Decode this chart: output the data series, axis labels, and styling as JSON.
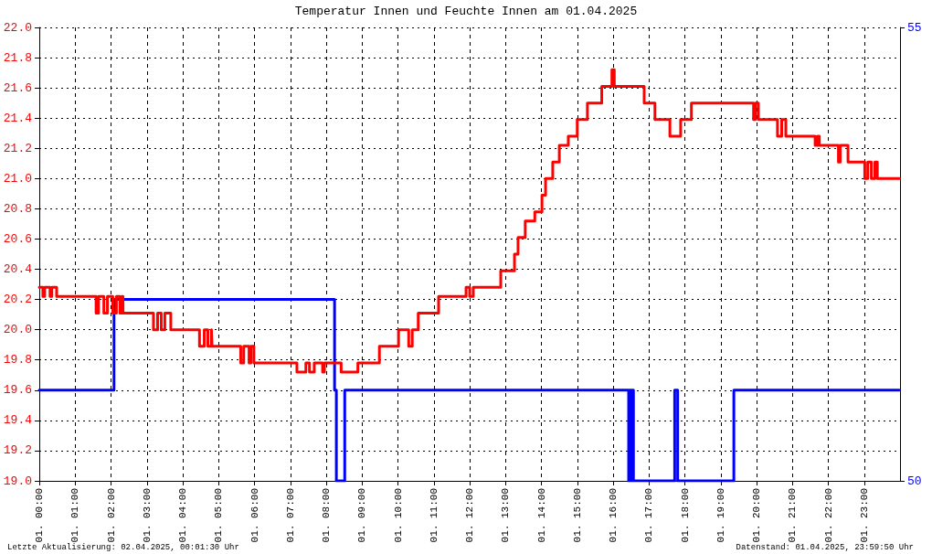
{
  "chart_data": {
    "type": "step",
    "title": "Temperatur Innen und Feuchte Innen am 01.04.2025",
    "annotations": [
      "Letzte Aktualisierung: 02.04.2025, 00:01:30 Uhr",
      "Datenstand: 01.04.2025, 23:59:50 Uhr"
    ],
    "xlim": [
      "2025-04-01T00:00",
      "2025-04-02T00:00"
    ],
    "xticks": [
      {
        "value": "2025-04-01T00:00",
        "label": "01. 00:00"
      },
      {
        "value": "2025-04-01T01:00",
        "label": "01. 01:00"
      },
      {
        "value": "2025-04-01T02:00",
        "label": "01. 02:00"
      },
      {
        "value": "2025-04-01T03:00",
        "label": "01. 03:00"
      },
      {
        "value": "2025-04-01T04:00",
        "label": "01. 04:00"
      },
      {
        "value": "2025-04-01T05:00",
        "label": "01. 05:00"
      },
      {
        "value": "2025-04-01T06:00",
        "label": "01. 06:00"
      },
      {
        "value": "2025-04-01T07:00",
        "label": "01. 07:00"
      },
      {
        "value": "2025-04-01T08:00",
        "label": "01. 08:00"
      },
      {
        "value": "2025-04-01T09:00",
        "label": "01. 09:00"
      },
      {
        "value": "2025-04-01T10:00",
        "label": "01. 10:00"
      },
      {
        "value": "2025-04-01T11:00",
        "label": "01. 11:00"
      },
      {
        "value": "2025-04-01T12:00",
        "label": "01. 12:00"
      },
      {
        "value": "2025-04-01T13:00",
        "label": "01. 13:00"
      },
      {
        "value": "2025-04-01T14:00",
        "label": "01. 14:00"
      },
      {
        "value": "2025-04-01T15:00",
        "label": "01. 15:00"
      },
      {
        "value": "2025-04-01T16:00",
        "label": "01. 16:00"
      },
      {
        "value": "2025-04-01T17:00",
        "label": "01. 17:00"
      },
      {
        "value": "2025-04-01T18:00",
        "label": "01. 18:00"
      },
      {
        "value": "2025-04-01T19:00",
        "label": "01. 19:00"
      },
      {
        "value": "2025-04-01T20:00",
        "label": "01. 20:00"
      },
      {
        "value": "2025-04-01T21:00",
        "label": "01. 21:00"
      },
      {
        "value": "2025-04-01T22:00",
        "label": "01. 22:00"
      },
      {
        "value": "2025-04-01T23:00",
        "label": "01. 23:00"
      }
    ],
    "ylim": [
      19,
      22
    ],
    "yticks": [
      {
        "value": 19,
        "label": "19.0"
      },
      19.2,
      19.4,
      19.6,
      19.8,
      {
        "value": 20,
        "label": "20.0"
      },
      20.2,
      20.4,
      20.6,
      20.8,
      {
        "value": 21,
        "label": "21.0"
      },
      21.2,
      21.4,
      21.6,
      21.8,
      {
        "value": 22,
        "label": "22.0"
      }
    ],
    "y2lim": [
      50,
      55
    ],
    "y2ticks": [
      50,
      55
    ],
    "grid": true,
    "marker": "none",
    "line_style": "solid",
    "series": [
      {
        "color": "#ff0000",
        "x": [
          "2025-04-01T00:00",
          "2025-04-01T00:06",
          "2025-04-01T00:09",
          "2025-04-01T00:18",
          "2025-04-01T00:21",
          "2025-04-01T00:29",
          "2025-04-01T01:35",
          "2025-04-01T01:39",
          "2025-04-01T01:48",
          "2025-04-01T01:54",
          "2025-04-01T02:03",
          "2025-04-01T02:09",
          "2025-04-01T02:15",
          "2025-04-01T02:18",
          "2025-04-01T02:20",
          "2025-04-01T03:11",
          "2025-04-01T03:18",
          "2025-04-01T03:24",
          "2025-04-01T03:30",
          "2025-04-01T03:40",
          "2025-04-01T04:28",
          "2025-04-01T04:36",
          "2025-04-01T04:42",
          "2025-04-01T04:48",
          "2025-04-01T04:49",
          "2025-04-01T05:37",
          "2025-04-01T05:42",
          "2025-04-01T05:51",
          "2025-04-01T05:54",
          "2025-04-01T05:59",
          "2025-04-01T07:11",
          "2025-04-01T07:26",
          "2025-04-01T07:32",
          "2025-04-01T07:40",
          "2025-04-01T07:54",
          "2025-04-01T07:57",
          "2025-04-01T08:25",
          "2025-04-01T08:53",
          "2025-04-01T09:29",
          "2025-04-01T10:01",
          "2025-04-01T10:18",
          "2025-04-01T10:24",
          "2025-04-01T10:34",
          "2025-04-01T11:08",
          "2025-04-01T11:54",
          "2025-04-01T12:00",
          "2025-04-01T12:06",
          "2025-04-01T12:52",
          "2025-04-01T13:15",
          "2025-04-01T13:21",
          "2025-04-01T13:33",
          "2025-04-01T13:49",
          "2025-04-01T14:01",
          "2025-04-01T14:07",
          "2025-04-01T14:19",
          "2025-04-01T14:30",
          "2025-04-01T14:45",
          "2025-04-01T15:00",
          "2025-04-01T15:17",
          "2025-04-01T15:41",
          "2025-04-01T15:58",
          "2025-04-01T16:02",
          "2025-04-01T16:52",
          "2025-04-01T17:10",
          "2025-04-01T17:35",
          "2025-04-01T17:53",
          "2025-04-01T18:11",
          "2025-04-01T19:55",
          "2025-04-01T19:58",
          "2025-04-01T20:03",
          "2025-04-01T20:35",
          "2025-04-01T20:42",
          "2025-04-01T20:49",
          "2025-04-01T21:38",
          "2025-04-01T21:42",
          "2025-04-01T21:45",
          "2025-04-01T22:17",
          "2025-04-01T22:20",
          "2025-04-01T22:33",
          "2025-04-01T23:01",
          "2025-04-01T23:06",
          "2025-04-01T23:12",
          "2025-04-01T23:18",
          "2025-04-01T23:22",
          "2025-04-01T23:59"
        ],
        "values": [
          20.28,
          20.22,
          20.28,
          20.22,
          20.28,
          20.22,
          20.11,
          20.22,
          20.11,
          20.22,
          20.11,
          20.22,
          20.11,
          20.22,
          20.11,
          20.0,
          20.11,
          20.0,
          20.11,
          20.0,
          19.89,
          20.0,
          19.89,
          20.0,
          19.89,
          19.78,
          19.89,
          19.78,
          19.89,
          19.78,
          19.72,
          19.78,
          19.72,
          19.78,
          19.72,
          19.78,
          19.72,
          19.78,
          19.89,
          20.0,
          19.89,
          20.0,
          20.11,
          20.22,
          20.28,
          20.22,
          20.28,
          20.39,
          20.5,
          20.61,
          20.72,
          20.78,
          20.89,
          21.0,
          21.11,
          21.22,
          21.28,
          21.39,
          21.5,
          21.61,
          21.72,
          21.61,
          21.5,
          21.39,
          21.28,
          21.39,
          21.5,
          21.39,
          21.5,
          21.39,
          21.28,
          21.39,
          21.28,
          21.22,
          21.28,
          21.22,
          21.11,
          21.22,
          21.11,
          21.0,
          21.11,
          21.0,
          21.11,
          21.0,
          21.0
        ]
      },
      {
        "color": "#0000ff",
        "axis": "y2",
        "x": [
          "2025-04-01T00:00",
          "2025-04-01T02:05",
          "2025-04-01T08:14",
          "2025-04-01T08:17",
          "2025-04-01T08:31",
          "2025-04-01T16:26",
          "2025-04-01T16:28",
          "2025-04-01T16:30",
          "2025-04-01T16:32",
          "2025-04-01T16:34",
          "2025-04-01T17:43",
          "2025-04-01T17:48",
          "2025-04-01T19:22",
          "2025-04-01T23:59"
        ],
        "values": [
          51,
          52,
          51,
          50,
          51,
          50,
          51,
          50,
          51,
          50,
          51,
          50,
          51,
          51
        ]
      }
    ]
  }
}
